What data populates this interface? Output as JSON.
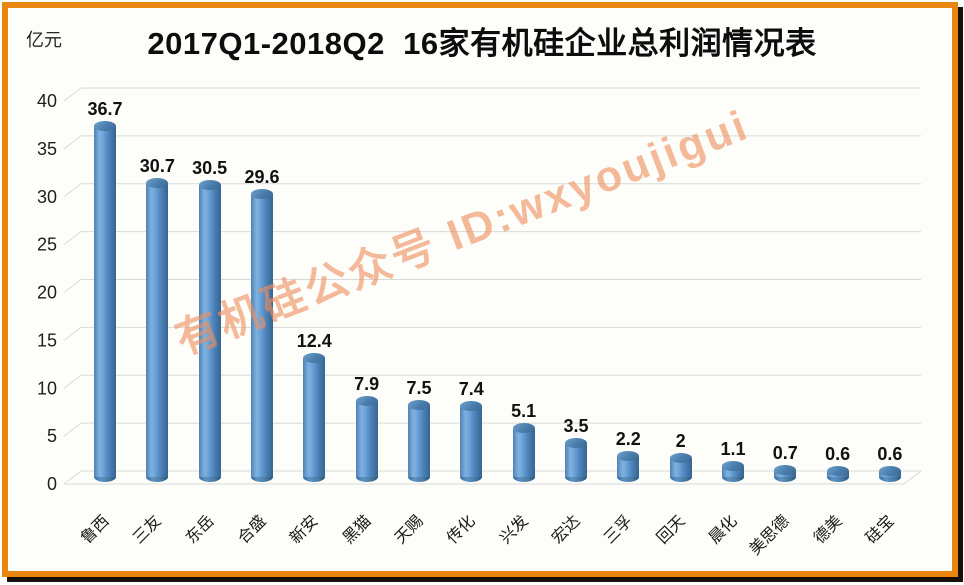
{
  "title": "2017Q1-2018Q2  16家有机硅企业总利润情况表",
  "unit_label": "亿元",
  "watermark": {
    "text": "有机硅公众号 ID:wxyoujigui",
    "color": "#ee8f5e"
  },
  "frame": {
    "border_color": "#e8860f"
  },
  "chart_data": {
    "type": "bar",
    "style": "3d-cylinder",
    "title": "2017Q1-2018Q2  16家有机硅企业总利润情况表",
    "ylabel": "亿元",
    "xlabel": "",
    "categories": [
      "鲁西",
      "三友",
      "东岳",
      "合盛",
      "新安",
      "黑猫",
      "天赐",
      "传化",
      "兴发",
      "宏达",
      "三孚",
      "回天",
      "晨化",
      "美思德",
      "德美",
      "硅宝"
    ],
    "values": [
      36.7,
      30.7,
      30.5,
      29.6,
      12.4,
      7.9,
      7.5,
      7.4,
      5.1,
      3.5,
      2.2,
      2,
      1.1,
      0.7,
      0.6,
      0.6
    ],
    "yticks": [
      0,
      5,
      10,
      15,
      20,
      25,
      30,
      35,
      40
    ],
    "ylim": [
      0,
      40
    ],
    "grid": true,
    "legend": false,
    "bar_color": "#5b94cb",
    "gridline_color": "#d9d9d9",
    "label_color": "#111111"
  }
}
